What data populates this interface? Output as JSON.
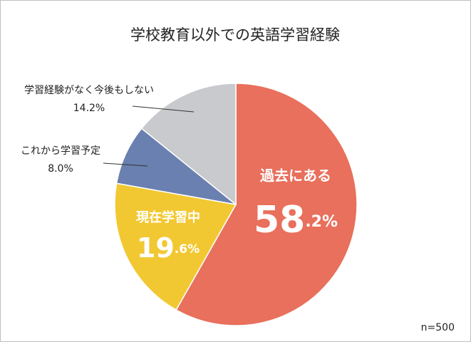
{
  "chart_data": {
    "type": "pie",
    "title": "学校教育以外での英語学習経験",
    "categories": [
      "過去にある",
      "現在学習中",
      "これから学習予定",
      "学習経験がなく今後もしない"
    ],
    "values": [
      58.2,
      19.6,
      8.0,
      14.2
    ],
    "value_labels": [
      "58.2%",
      "19.6%",
      "8.0%",
      "14.2%"
    ],
    "colors": [
      "#e8705c",
      "#f2c832",
      "#6a80b0",
      "#c9cacd"
    ],
    "annotation": "n=500"
  }
}
